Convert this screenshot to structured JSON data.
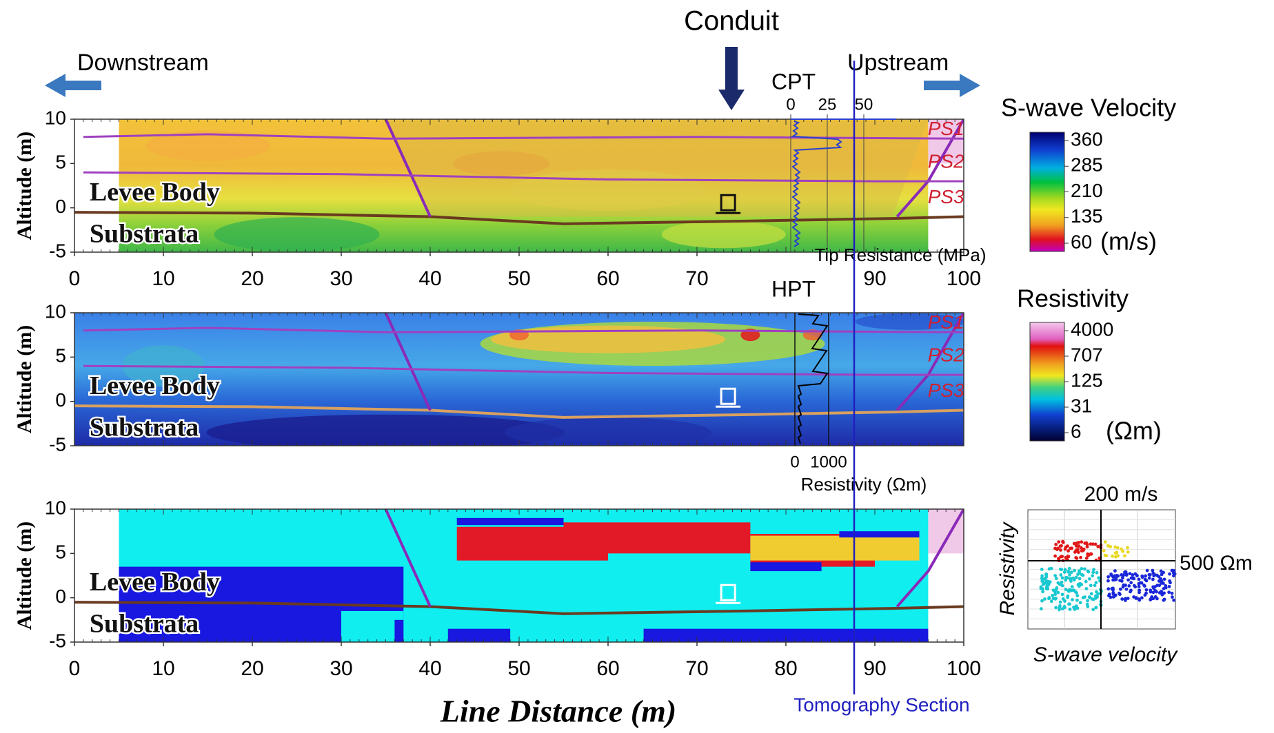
{
  "header": {
    "conduit": "Conduit",
    "downstream": "Downstream",
    "upstream": "Upstream",
    "tomography": "Tomography Section"
  },
  "chart_data": [
    {
      "type": "contour",
      "ylabel": "Altitude (m)",
      "xlim": [
        0,
        100
      ],
      "ylim": [
        -5,
        10
      ],
      "xticks": [
        0,
        10,
        20,
        30,
        40,
        50,
        60,
        70,
        90,
        100
      ],
      "yticks": [
        -5,
        0,
        5,
        10
      ],
      "annotations": [
        "Levee Body",
        "Substrata"
      ],
      "profiles": [
        "PS1",
        "PS2",
        "PS3"
      ],
      "inset": {
        "title": "CPT",
        "ticks": [
          0,
          25,
          50
        ],
        "label": "Tip Resistance (MPa)"
      }
    },
    {
      "type": "contour",
      "ylabel": "Altitude (m)",
      "xlim": [
        0,
        100
      ],
      "ylim": [
        -5,
        10
      ],
      "yticks": [
        -5,
        0,
        5,
        10
      ],
      "annotations": [
        "Levee Body",
        "Substrata"
      ],
      "profiles": [
        "PS1",
        "PS2",
        "PS3"
      ],
      "inset": {
        "title": "HPT",
        "ticks": [
          0,
          1000
        ],
        "label": "Resistivity (Ωm)"
      }
    },
    {
      "type": "contour",
      "ylabel": "Altitude (m)",
      "xlabel": "Line Distance (m)",
      "xlim": [
        0,
        100
      ],
      "ylim": [
        -5,
        10
      ],
      "xticks": [
        0,
        10,
        20,
        30,
        40,
        50,
        60,
        70,
        80,
        90,
        100
      ],
      "yticks": [
        -5,
        0,
        5,
        10
      ],
      "annotations": [
        "Levee Body",
        "Substrata"
      ]
    }
  ],
  "colorbars": [
    {
      "title": "S-wave Velocity",
      "ticks": [
        360,
        285,
        210,
        135,
        60
      ],
      "unit": "(m/s)"
    },
    {
      "title": "Resistivity",
      "ticks": [
        4000,
        707,
        125,
        31,
        6
      ],
      "unit": "(Ωm)"
    }
  ],
  "crossplot": {
    "xlabel": "S-wave velocity",
    "ylabel": "Resistivity",
    "xthreshold": "200 m/s",
    "ythreshold": "500 Ωm"
  }
}
